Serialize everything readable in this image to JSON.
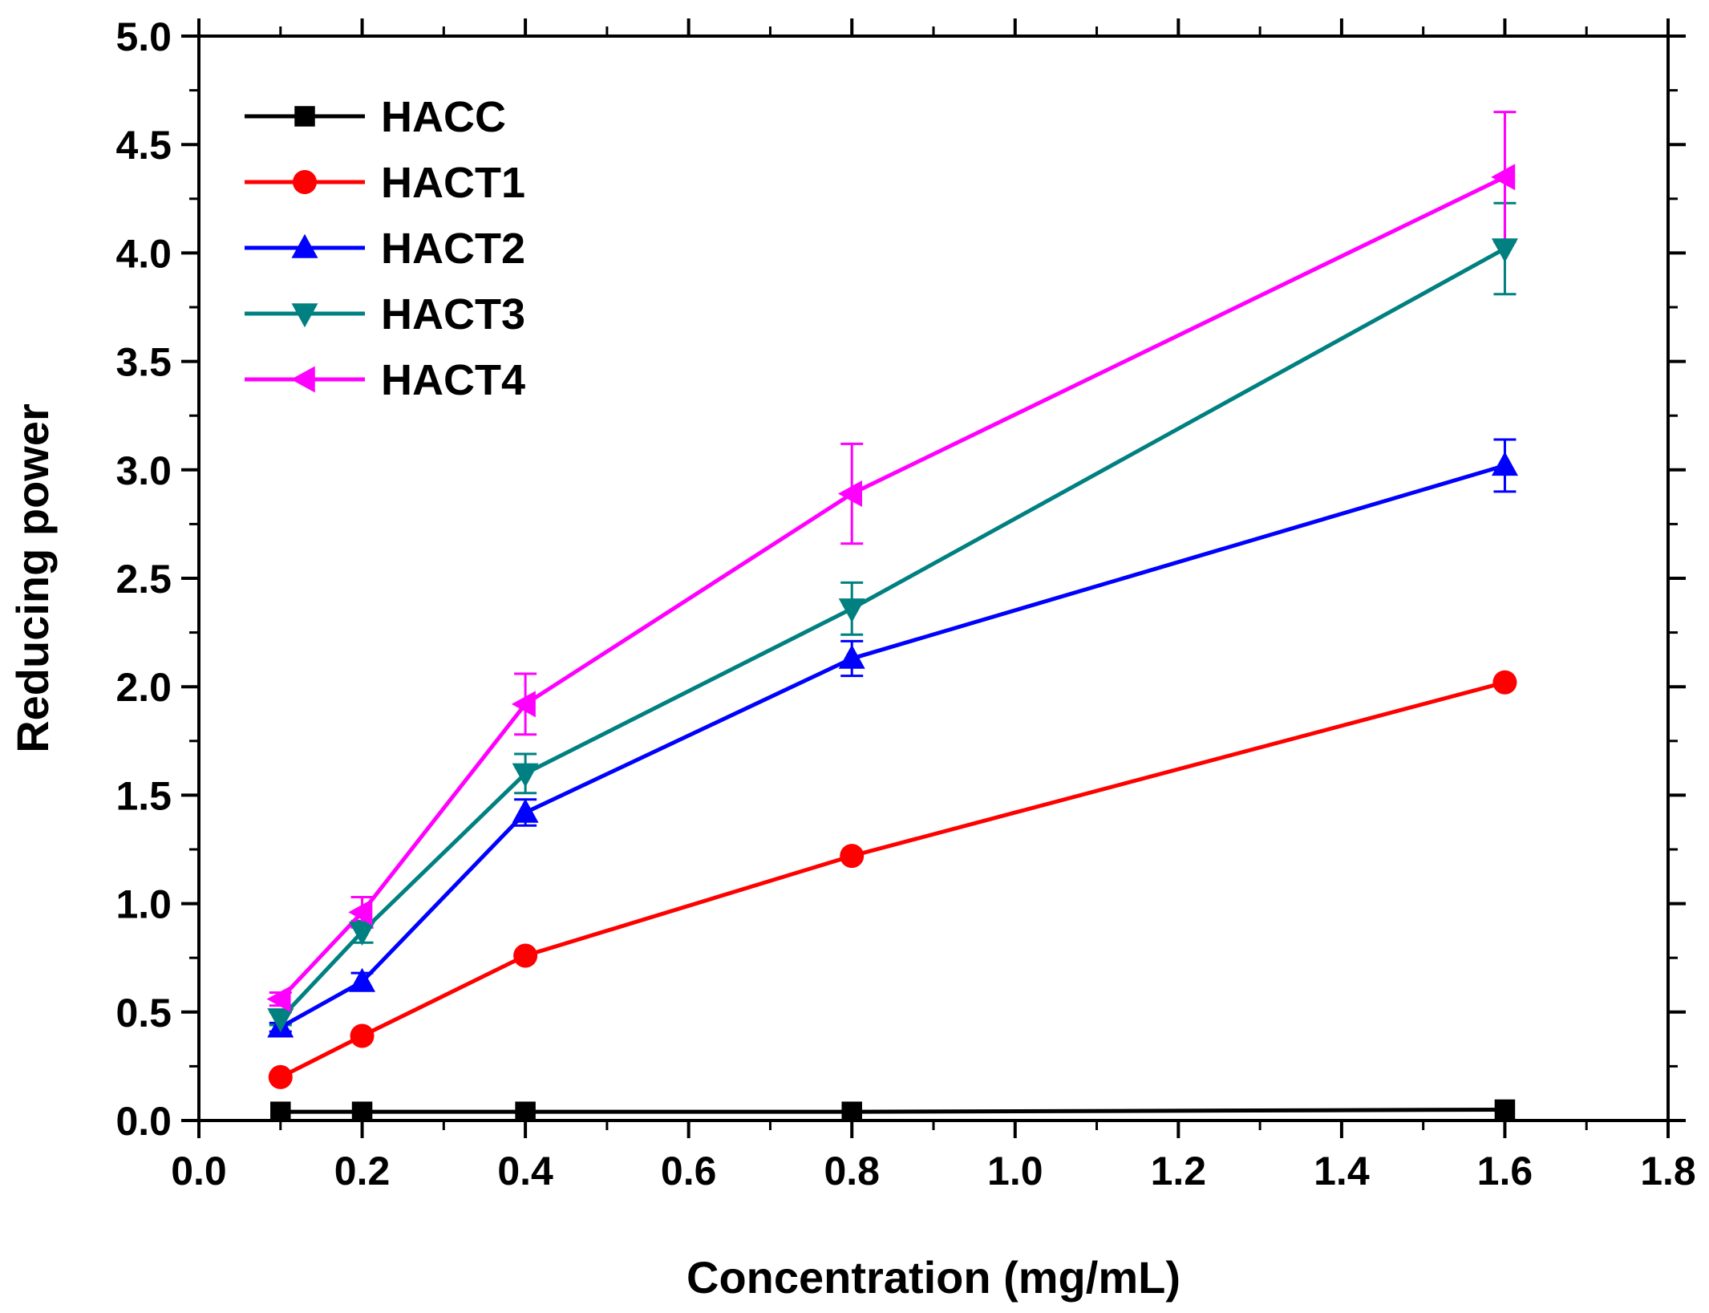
{
  "chart_data": {
    "type": "line",
    "title": "",
    "xlabel": "Concentration (mg/mL)",
    "ylabel": "Reducing power",
    "xlim": [
      0.0,
      1.8
    ],
    "ylim": [
      0.0,
      5.0
    ],
    "xticks": [
      0.0,
      0.2,
      0.4,
      0.6,
      0.8,
      1.0,
      1.2,
      1.4,
      1.6,
      1.8
    ],
    "xtick_labels": [
      "0.0",
      "0.2",
      "0.4",
      "0.6",
      "0.8",
      "1.0",
      "1.2",
      "1.4",
      "1.6",
      "1.8"
    ],
    "yticks": [
      0.0,
      0.5,
      1.0,
      1.5,
      2.0,
      2.5,
      3.0,
      3.5,
      4.0,
      4.5,
      5.0
    ],
    "ytick_labels": [
      "0.0",
      "0.5",
      "1.0",
      "1.5",
      "2.0",
      "2.5",
      "3.0",
      "3.5",
      "4.0",
      "4.5",
      "5.0"
    ],
    "grid": false,
    "legend_position": "top-left",
    "x": [
      0.1,
      0.2,
      0.4,
      0.8,
      1.6
    ],
    "series": [
      {
        "name": "HACC",
        "color": "#000000",
        "marker": "square",
        "values": [
          0.04,
          0.04,
          0.04,
          0.04,
          0.05
        ],
        "errors": [
          0.0,
          0.0,
          0.0,
          0.0,
          0.0
        ]
      },
      {
        "name": "HACT1",
        "color": "#ff0000",
        "marker": "circle",
        "values": [
          0.2,
          0.39,
          0.76,
          1.22,
          2.02
        ],
        "errors": [
          0.0,
          0.0,
          0.0,
          0.0,
          0.0
        ]
      },
      {
        "name": "HACT2",
        "color": "#0000ff",
        "marker": "triangle-up",
        "values": [
          0.43,
          0.64,
          1.42,
          2.13,
          3.02
        ],
        "errors": [
          0.02,
          0.04,
          0.06,
          0.08,
          0.12
        ]
      },
      {
        "name": "HACT3",
        "color": "#008080",
        "marker": "triangle-down",
        "values": [
          0.47,
          0.87,
          1.6,
          2.36,
          4.02
        ],
        "errors": [
          0.03,
          0.05,
          0.09,
          0.12,
          0.21
        ]
      },
      {
        "name": "HACT4",
        "color": "#ff00ff",
        "marker": "triangle-left",
        "values": [
          0.56,
          0.96,
          1.92,
          2.89,
          4.35
        ],
        "errors": [
          0.03,
          0.07,
          0.14,
          0.23,
          0.3
        ]
      }
    ]
  }
}
